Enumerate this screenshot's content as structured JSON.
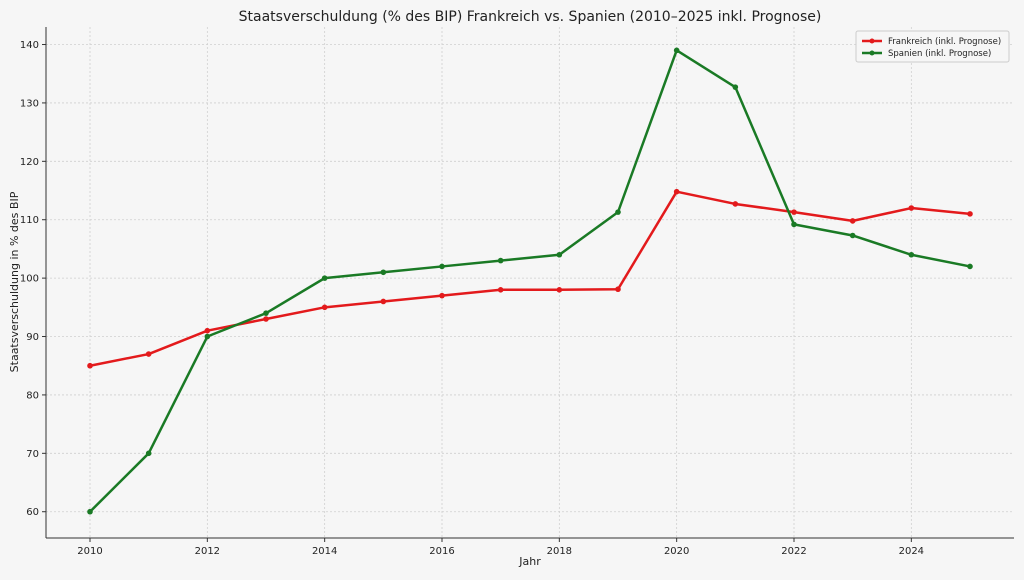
{
  "chart_data": {
    "type": "line",
    "title": "Staatsverschuldung (% des BIP) Frankreich vs. Spanien (2010–2025 inkl. Prognose)",
    "xlabel": "Jahr",
    "ylabel": "Staatsverschuldung in % des BIP",
    "x": [
      2010,
      2011,
      2012,
      2013,
      2014,
      2015,
      2016,
      2017,
      2018,
      2019,
      2020,
      2021,
      2022,
      2023,
      2024,
      2025
    ],
    "xlim": [
      2009.25,
      2025.75
    ],
    "ylim": [
      55.5,
      143
    ],
    "xticks": [
      2010,
      2012,
      2014,
      2016,
      2018,
      2020,
      2022,
      2024
    ],
    "yticks": [
      60,
      70,
      80,
      90,
      100,
      110,
      120,
      130,
      140
    ],
    "grid": true,
    "legend_position": "top-right",
    "series": [
      {
        "name": "Frankreich (inkl. Prognose)",
        "color": "#e31a1c",
        "values": [
          85,
          87,
          91,
          93,
          95,
          96,
          97,
          98,
          98,
          98.1,
          114.8,
          112.7,
          111.3,
          109.8,
          112,
          111
        ]
      },
      {
        "name": "Spanien (inkl. Prognose)",
        "color": "#1a7a25",
        "values": [
          60,
          70,
          90,
          94,
          100,
          101,
          102,
          103,
          104,
          111.3,
          139,
          132.7,
          109.2,
          107.3,
          104,
          102
        ]
      }
    ]
  }
}
